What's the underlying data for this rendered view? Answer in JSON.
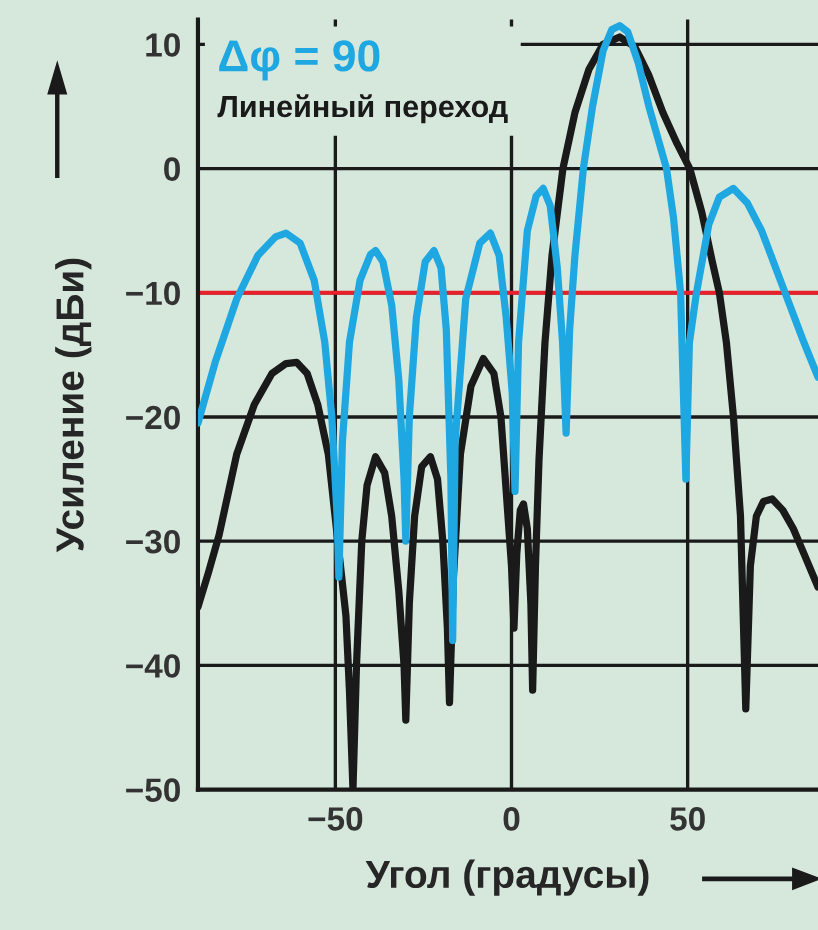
{
  "chart_data": {
    "type": "line",
    "xlabel": "Угол (градусы)",
    "ylabel": "Усиление (дБи)",
    "xlim": [
      -89,
      87
    ],
    "ylim": [
      -50,
      12
    ],
    "xticks": [
      {
        "value": -50,
        "label": "−50"
      },
      0,
      50
    ],
    "yticks": [
      {
        "value": -50,
        "label": "−50"
      },
      {
        "value": -40,
        "label": "−40"
      },
      {
        "value": -30,
        "label": "−30"
      },
      {
        "value": -20,
        "label": "−20"
      },
      {
        "value": -10,
        "label": "−10"
      },
      0,
      10
    ],
    "grid": true,
    "legend": "top left",
    "marker": "none",
    "line_style": "solid",
    "ref_lines": [
      {
        "axis": "y",
        "value": -10,
        "color": "#e8202a"
      }
    ],
    "series": [
      {
        "name": "Δφ = 90",
        "color": "#1ea7e1",
        "x": [
          -89,
          -84,
          -78,
          -72,
          -67,
          -64,
          -60,
          -56,
          -53,
          -51,
          -49.5,
          -49,
          -48,
          -46,
          -43,
          -40,
          -38.6,
          -36.5,
          -34,
          -32,
          -30.5,
          -30,
          -29,
          -27,
          -24.5,
          -22,
          -20,
          -18.5,
          -17.2,
          -16.7,
          -16,
          -13,
          -9,
          -6,
          -3.5,
          -1.5,
          0.2,
          1,
          2,
          4.5,
          7,
          9,
          11,
          13,
          14.5,
          15.5,
          16.5,
          18,
          20.4,
          23,
          26,
          28.5,
          30.7,
          33,
          36,
          39,
          42,
          44,
          46,
          48,
          49.5,
          50.5,
          52.5,
          56,
          59,
          63,
          67,
          71,
          75,
          79,
          83,
          87
        ],
        "values": [
          -20.5,
          -15.5,
          -10.5,
          -7,
          -5.5,
          -5.2,
          -6,
          -9,
          -14,
          -20,
          -28,
          -32.9,
          -22,
          -14,
          -9,
          -6.9,
          -6.6,
          -7.5,
          -11,
          -17,
          -25,
          -30,
          -20,
          -12,
          -7.5,
          -6.6,
          -8,
          -13,
          -25,
          -38,
          -22,
          -10.5,
          -6,
          -5.2,
          -7,
          -12,
          -18,
          -26,
          -14,
          -5,
          -2.2,
          -1.6,
          -3,
          -8,
          -14,
          -21.3,
          -13,
          -7,
          0,
          5,
          9.5,
          11.2,
          11.5,
          11,
          8.5,
          5,
          2,
          0,
          -4,
          -10,
          -25,
          -14,
          -10,
          -4.5,
          -2.3,
          -1.6,
          -2.8,
          -5,
          -8,
          -11,
          -14,
          -16.8
        ]
      },
      {
        "name": "Линейный переход",
        "color": "#1a1a1a",
        "x": [
          -89,
          -86,
          -83,
          -78,
          -73,
          -68,
          -64,
          -61,
          -58,
          -55,
          -52,
          -47,
          -46,
          -45,
          -44,
          -42.5,
          -41,
          -38.6,
          -36,
          -34,
          -32,
          -30.5,
          -30,
          -29,
          -27.5,
          -25.5,
          -23,
          -21,
          -19.5,
          -18.2,
          -17.6,
          -16.5,
          -14.5,
          -11.5,
          -8,
          -5,
          -3,
          -1.5,
          0,
          0.7,
          1.5,
          2.5,
          3.4,
          4.5,
          5.5,
          6,
          6.8,
          7.8,
          9.5,
          11.5,
          14.6,
          18,
          22,
          26,
          30.7,
          35,
          39,
          43,
          47,
          50.6,
          54,
          57,
          59,
          61,
          63,
          65,
          66.5,
          67.8,
          69.5,
          71.5,
          74,
          77,
          80,
          83,
          87
        ],
        "values": [
          -35.3,
          -32.5,
          -29.5,
          -23,
          -19,
          -16.5,
          -15.7,
          -15.6,
          -16.5,
          -19,
          -23,
          -36,
          -42,
          -50,
          -40,
          -30,
          -25.5,
          -23.2,
          -24.5,
          -28,
          -34,
          -40,
          -44.4,
          -35,
          -28,
          -24,
          -23.2,
          -25,
          -30,
          -37,
          -43,
          -33,
          -23,
          -17.5,
          -15.3,
          -16.5,
          -20,
          -26,
          -32,
          -37,
          -31,
          -27.5,
          -27,
          -29,
          -35,
          -42,
          -32,
          -23.5,
          -14,
          -7,
          0,
          4.5,
          8,
          10,
          10.6,
          9.8,
          7.5,
          4.5,
          2,
          0,
          -3.5,
          -7.5,
          -10,
          -14,
          -20,
          -28,
          -43.5,
          -32,
          -28,
          -26.8,
          -26.6,
          -27.5,
          -29,
          -31,
          -33.7
        ]
      }
    ]
  }
}
